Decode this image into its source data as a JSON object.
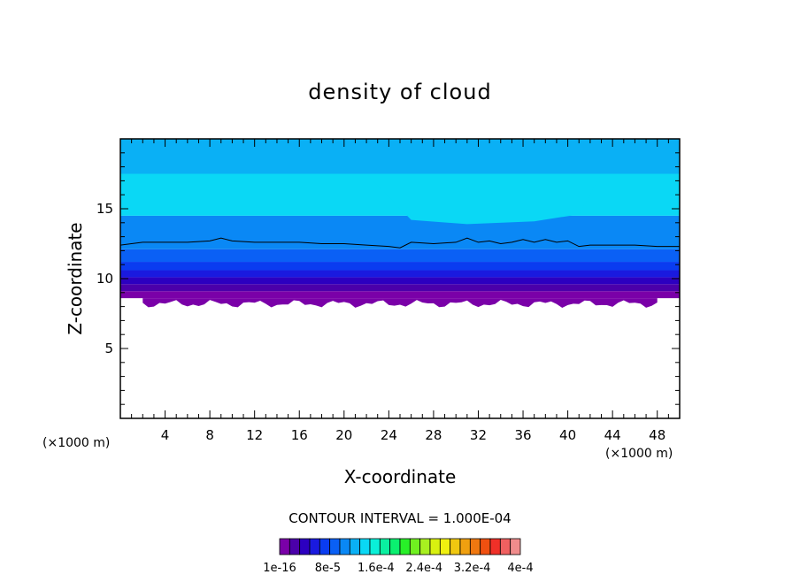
{
  "chart_data": {
    "type": "heatmap",
    "title": "density of cloud",
    "xlabel": "X-coordinate",
    "ylabel": "Z-coordinate",
    "x_unit": "(×1000 m)",
    "xlim": [
      0,
      50
    ],
    "ylim": [
      0,
      20
    ],
    "x_ticks": [
      4,
      8,
      12,
      16,
      20,
      24,
      28,
      32,
      36,
      40,
      44,
      48
    ],
    "y_ticks": [
      5,
      10,
      15
    ],
    "contour_interval_label": "CONTOUR INTERVAL = 1.000E-04",
    "colorbar": {
      "labels": [
        "1e-16",
        "8e-5",
        "1.6e-4",
        "2.4e-4",
        "3.2e-4",
        "4e-4"
      ],
      "colors": [
        "#7a00a8",
        "#4b00aa",
        "#2c00c0",
        "#1a1adf",
        "#0a3cf0",
        "#0a60f5",
        "#0a88f5",
        "#0ab0f5",
        "#0ad8f5",
        "#0af0d8",
        "#0af0a0",
        "#0af070",
        "#28f028",
        "#70f020",
        "#a8f020",
        "#d8f010",
        "#f0f010",
        "#f0c810",
        "#f0a010",
        "#f07810",
        "#f05010",
        "#f03028",
        "#f06060",
        "#f08c8c"
      ]
    },
    "bands": [
      {
        "from": 8.6,
        "to": 9.1,
        "color": "#7a00a8"
      },
      {
        "from": 9.1,
        "to": 9.6,
        "color": "#4b00aa"
      },
      {
        "from": 9.6,
        "to": 10.1,
        "color": "#2c00c0"
      },
      {
        "from": 10.1,
        "to": 10.6,
        "color": "#1a1adf"
      },
      {
        "from": 10.6,
        "to": 11.2,
        "color": "#0a3cf0"
      },
      {
        "from": 11.2,
        "to": 12.1,
        "color": "#0a60f5"
      },
      {
        "from": 12.1,
        "to": 14.5,
        "color": "#0a88f5"
      },
      {
        "from": 14.5,
        "to": 17.5,
        "color": "#0ad8f5"
      },
      {
        "from": 17.5,
        "to": 20.0,
        "color": "#0ab0f5"
      }
    ],
    "contour_line": {
      "x": [
        0,
        2,
        4,
        6,
        8,
        9,
        10,
        12,
        14,
        16,
        18,
        20,
        22,
        24,
        25,
        26,
        28,
        30,
        31,
        32,
        33,
        34,
        35,
        36,
        37,
        38,
        39,
        40,
        41,
        42,
        44,
        46,
        48,
        50
      ],
      "y": [
        12.4,
        12.6,
        12.6,
        12.6,
        12.7,
        12.9,
        12.7,
        12.6,
        12.6,
        12.6,
        12.5,
        12.5,
        12.4,
        12.3,
        12.2,
        12.6,
        12.5,
        12.6,
        12.9,
        12.6,
        12.7,
        12.5,
        12.6,
        12.8,
        12.6,
        12.8,
        12.6,
        12.7,
        12.3,
        12.4,
        12.4,
        12.4,
        12.3,
        12.3
      ]
    }
  }
}
